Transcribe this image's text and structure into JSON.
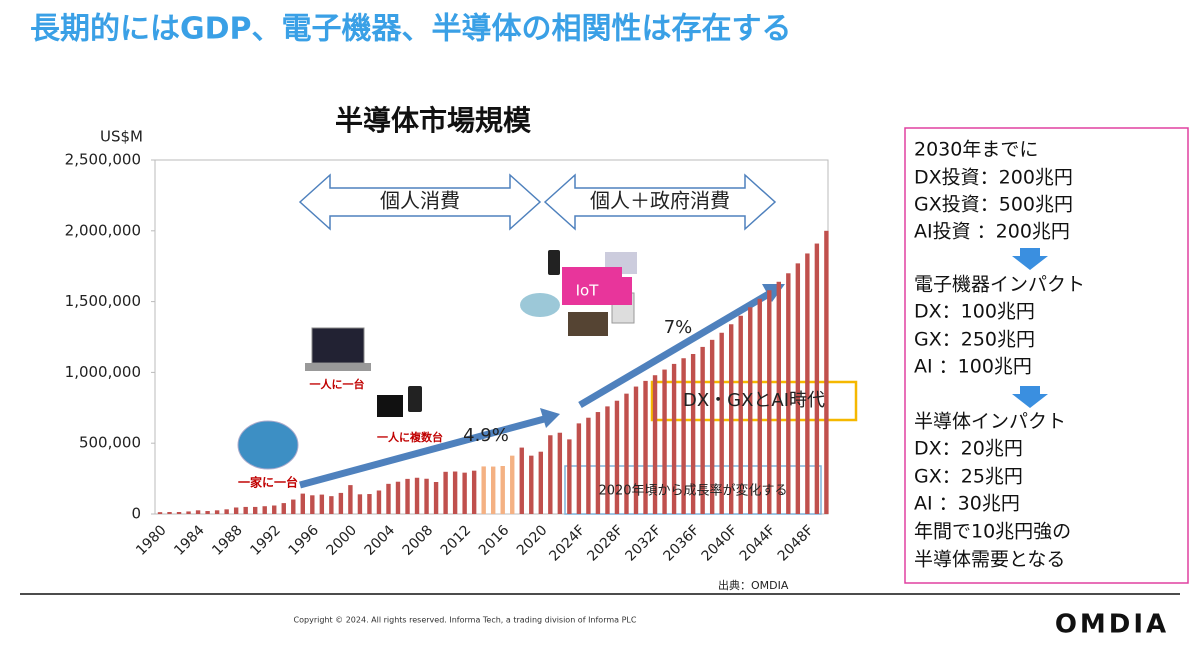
{
  "slide": {
    "title": "長期的にはGDP、電子機器、半導体の相関性は存在する",
    "side_box": [
      "2030年までに",
      "DX投資：200兆円",
      "GX投資：500兆円",
      "AI投資 ：200兆円",
      "電子機器インパクト",
      "DX：100兆円",
      "GX：250兆円",
      "AI ：100兆円",
      "半導体インパクト",
      "DX：20兆円",
      "GX：25兆円",
      "AI ：30兆円",
      "年間で10兆円強の",
      "半導体需要となる"
    ],
    "copyright": "Copyright © 2024. All rights reserved. Informa Tech, a trading division of Informa PLC",
    "logo": "OMDIA"
  },
  "chart_data": {
    "type": "bar",
    "title": "半導体市場規模",
    "y_label": "US$M",
    "source": "出典：OMDIA",
    "categories": [
      "1980",
      null,
      null,
      null,
      "1984",
      null,
      null,
      null,
      "1988",
      null,
      null,
      null,
      "1992",
      null,
      null,
      null,
      "1996",
      null,
      null,
      null,
      "2000",
      null,
      null,
      null,
      "2004",
      null,
      null,
      null,
      "2008",
      null,
      null,
      null,
      "2012",
      null,
      null,
      null,
      "2016",
      null,
      null,
      null,
      "2020",
      null,
      null,
      null,
      "2024F",
      null,
      null,
      null,
      "2028F",
      null,
      null,
      null,
      "2032F",
      null,
      null,
      null,
      "2036F",
      null,
      null,
      null,
      "2040F",
      null,
      null,
      null,
      "2044F",
      null,
      null,
      null,
      "2048F",
      null,
      null
    ],
    "values": [
      13000,
      14000,
      14000,
      18000,
      26000,
      21000,
      26000,
      33000,
      46000,
      50000,
      50000,
      55000,
      60000,
      77000,
      102000,
      144000,
      132000,
      137000,
      126000,
      149000,
      204000,
      139000,
      141000,
      166000,
      213000,
      228000,
      248000,
      256000,
      249000,
      226000,
      298000,
      300000,
      292000,
      306000,
      336000,
      335000,
      339000,
      412000,
      469000,
      412000,
      440000,
      556000,
      574000,
      527000,
      640000,
      680000,
      720000,
      760000,
      800000,
      850000,
      900000,
      940000,
      980000,
      1020000,
      1060000,
      1100000,
      1130000,
      1180000,
      1230000,
      1280000,
      1340000,
      1400000,
      1460000,
      1520000,
      1580000,
      1640000,
      1700000,
      1770000,
      1840000,
      1910000,
      2000000
    ],
    "colors": [
      "#c0504d",
      "#c0504d",
      "#c0504d",
      "#c0504d",
      "#c0504d",
      "#c0504d",
      "#c0504d",
      "#c0504d",
      "#c0504d",
      "#c0504d",
      "#c0504d",
      "#c0504d",
      "#c0504d",
      "#c0504d",
      "#c0504d",
      "#c0504d",
      "#c0504d",
      "#c0504d",
      "#c0504d",
      "#c0504d",
      "#c0504d",
      "#c0504d",
      "#c0504d",
      "#c0504d",
      "#c0504d",
      "#c0504d",
      "#c0504d",
      "#c0504d",
      "#c0504d",
      "#c0504d",
      "#c0504d",
      "#c0504d",
      "#c0504d",
      "#c0504d",
      "#f4b183",
      "#f4b183",
      "#f4b183",
      "#f4b183",
      "#c0504d",
      "#c0504d",
      "#c0504d",
      "#c0504d",
      "#c0504d",
      "#c0504d",
      "#c0504d",
      "#c0504d",
      "#c0504d",
      "#c0504d",
      "#c0504d",
      "#c0504d",
      "#c0504d",
      "#c0504d",
      "#c0504d",
      "#c0504d",
      "#c0504d",
      "#c0504d",
      "#c0504d",
      "#c0504d",
      "#c0504d",
      "#c0504d",
      "#c0504d",
      "#c0504d",
      "#c0504d",
      "#c0504d",
      "#c0504d",
      "#c0504d",
      "#c0504d",
      "#c0504d",
      "#c0504d",
      "#c0504d",
      "#c0504d"
    ],
    "ylim": [
      0,
      2500000
    ],
    "yticks": [
      0,
      {
        "value": 500000,
        "label": "500,000"
      },
      {
        "value": 1000000,
        "label": "1,000,000"
      },
      {
        "value": 1500000,
        "label": "1,500,000"
      },
      {
        "value": 2000000,
        "label": "2,000,000"
      },
      {
        "value": 2500000,
        "label": "2,500,000"
      }
    ],
    "annotations": [
      "個人消費",
      "個人＋政府消費",
      "4.9%",
      "7%",
      "DX・GXとAI時代",
      "2020年頃から成長率が変化する",
      "一家に一台",
      "一人に一台",
      "一人に複数台",
      "IoT"
    ]
  }
}
